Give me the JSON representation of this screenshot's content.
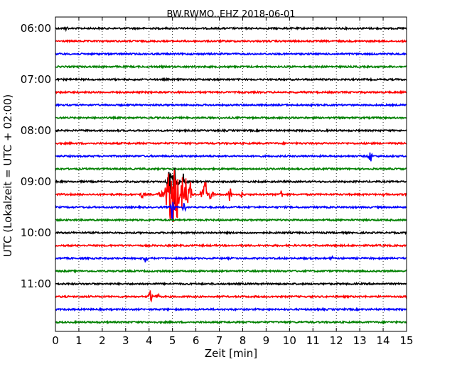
{
  "chart_data": {
    "type": "line",
    "title": "BW.RWMO..EHZ 2018-06-01",
    "xlabel": "Zeit  [min]",
    "ylabel": "UTC (Lokalzeit = UTC + 02:00)",
    "xlim": [
      0,
      15
    ],
    "x_ticks": [
      "0",
      "1",
      "2",
      "3",
      "4",
      "5",
      "6",
      "7",
      "8",
      "9",
      "10",
      "11",
      "12",
      "13",
      "14",
      "15"
    ],
    "y_ticks": [
      "06:00",
      "07:00",
      "08:00",
      "09:00",
      "10:00",
      "11:00"
    ],
    "grid": "vertical dotted",
    "trace_interval_min": 15,
    "trace_colors": [
      "#000000",
      "#ff0000",
      "#0000ff",
      "#008000"
    ],
    "traces": [
      {
        "start": "06:00",
        "events": [
          {
            "x": 0.5,
            "amp": 0.15
          }
        ]
      },
      {
        "start": "06:15",
        "events": []
      },
      {
        "start": "06:30",
        "events": []
      },
      {
        "start": "06:45",
        "events": []
      },
      {
        "start": "07:00",
        "events": []
      },
      {
        "start": "07:15",
        "events": []
      },
      {
        "start": "07:30",
        "events": []
      },
      {
        "start": "07:45",
        "events": []
      },
      {
        "start": "08:00",
        "events": []
      },
      {
        "start": "08:15",
        "events": []
      },
      {
        "start": "08:30",
        "events": [
          {
            "x": 13.45,
            "amp": 0.5
          }
        ]
      },
      {
        "start": "08:45",
        "events": []
      },
      {
        "start": "09:00",
        "events": [
          {
            "x": 5.0,
            "amp": 2.3
          },
          {
            "x": 5.5,
            "amp": 0.9
          }
        ]
      },
      {
        "start": "09:15",
        "events": [
          {
            "x": 3.7,
            "amp": 0.35
          },
          {
            "x": 4.5,
            "amp": 0.5
          },
          {
            "x": 4.9,
            "amp": 2.2
          },
          {
            "x": 5.15,
            "amp": 2.0
          },
          {
            "x": 5.5,
            "amp": 1.5
          },
          {
            "x": 5.75,
            "amp": 1.0
          },
          {
            "x": 6.45,
            "amp": 1.3
          },
          {
            "x": 7.45,
            "amp": 0.6
          },
          {
            "x": 7.95,
            "amp": 0.3
          },
          {
            "x": 9.65,
            "amp": 0.35
          },
          {
            "x": 14.05,
            "amp": 0.2
          }
        ]
      },
      {
        "start": "09:30",
        "events": [
          {
            "x": 5.0,
            "amp": 1.0
          },
          {
            "x": 5.5,
            "amp": 0.4
          }
        ]
      },
      {
        "start": "09:45",
        "events": []
      },
      {
        "start": "10:00",
        "events": []
      },
      {
        "start": "10:15",
        "events": []
      },
      {
        "start": "10:30",
        "events": [
          {
            "x": 3.85,
            "amp": 0.5
          },
          {
            "x": 11.8,
            "amp": 0.15
          }
        ]
      },
      {
        "start": "10:45",
        "events": []
      },
      {
        "start": "11:00",
        "events": []
      },
      {
        "start": "11:15",
        "events": [
          {
            "x": 4.05,
            "amp": 0.6
          },
          {
            "x": 4.35,
            "amp": 0.3
          }
        ]
      },
      {
        "start": "11:30",
        "events": []
      },
      {
        "start": "11:45",
        "events": []
      }
    ]
  }
}
